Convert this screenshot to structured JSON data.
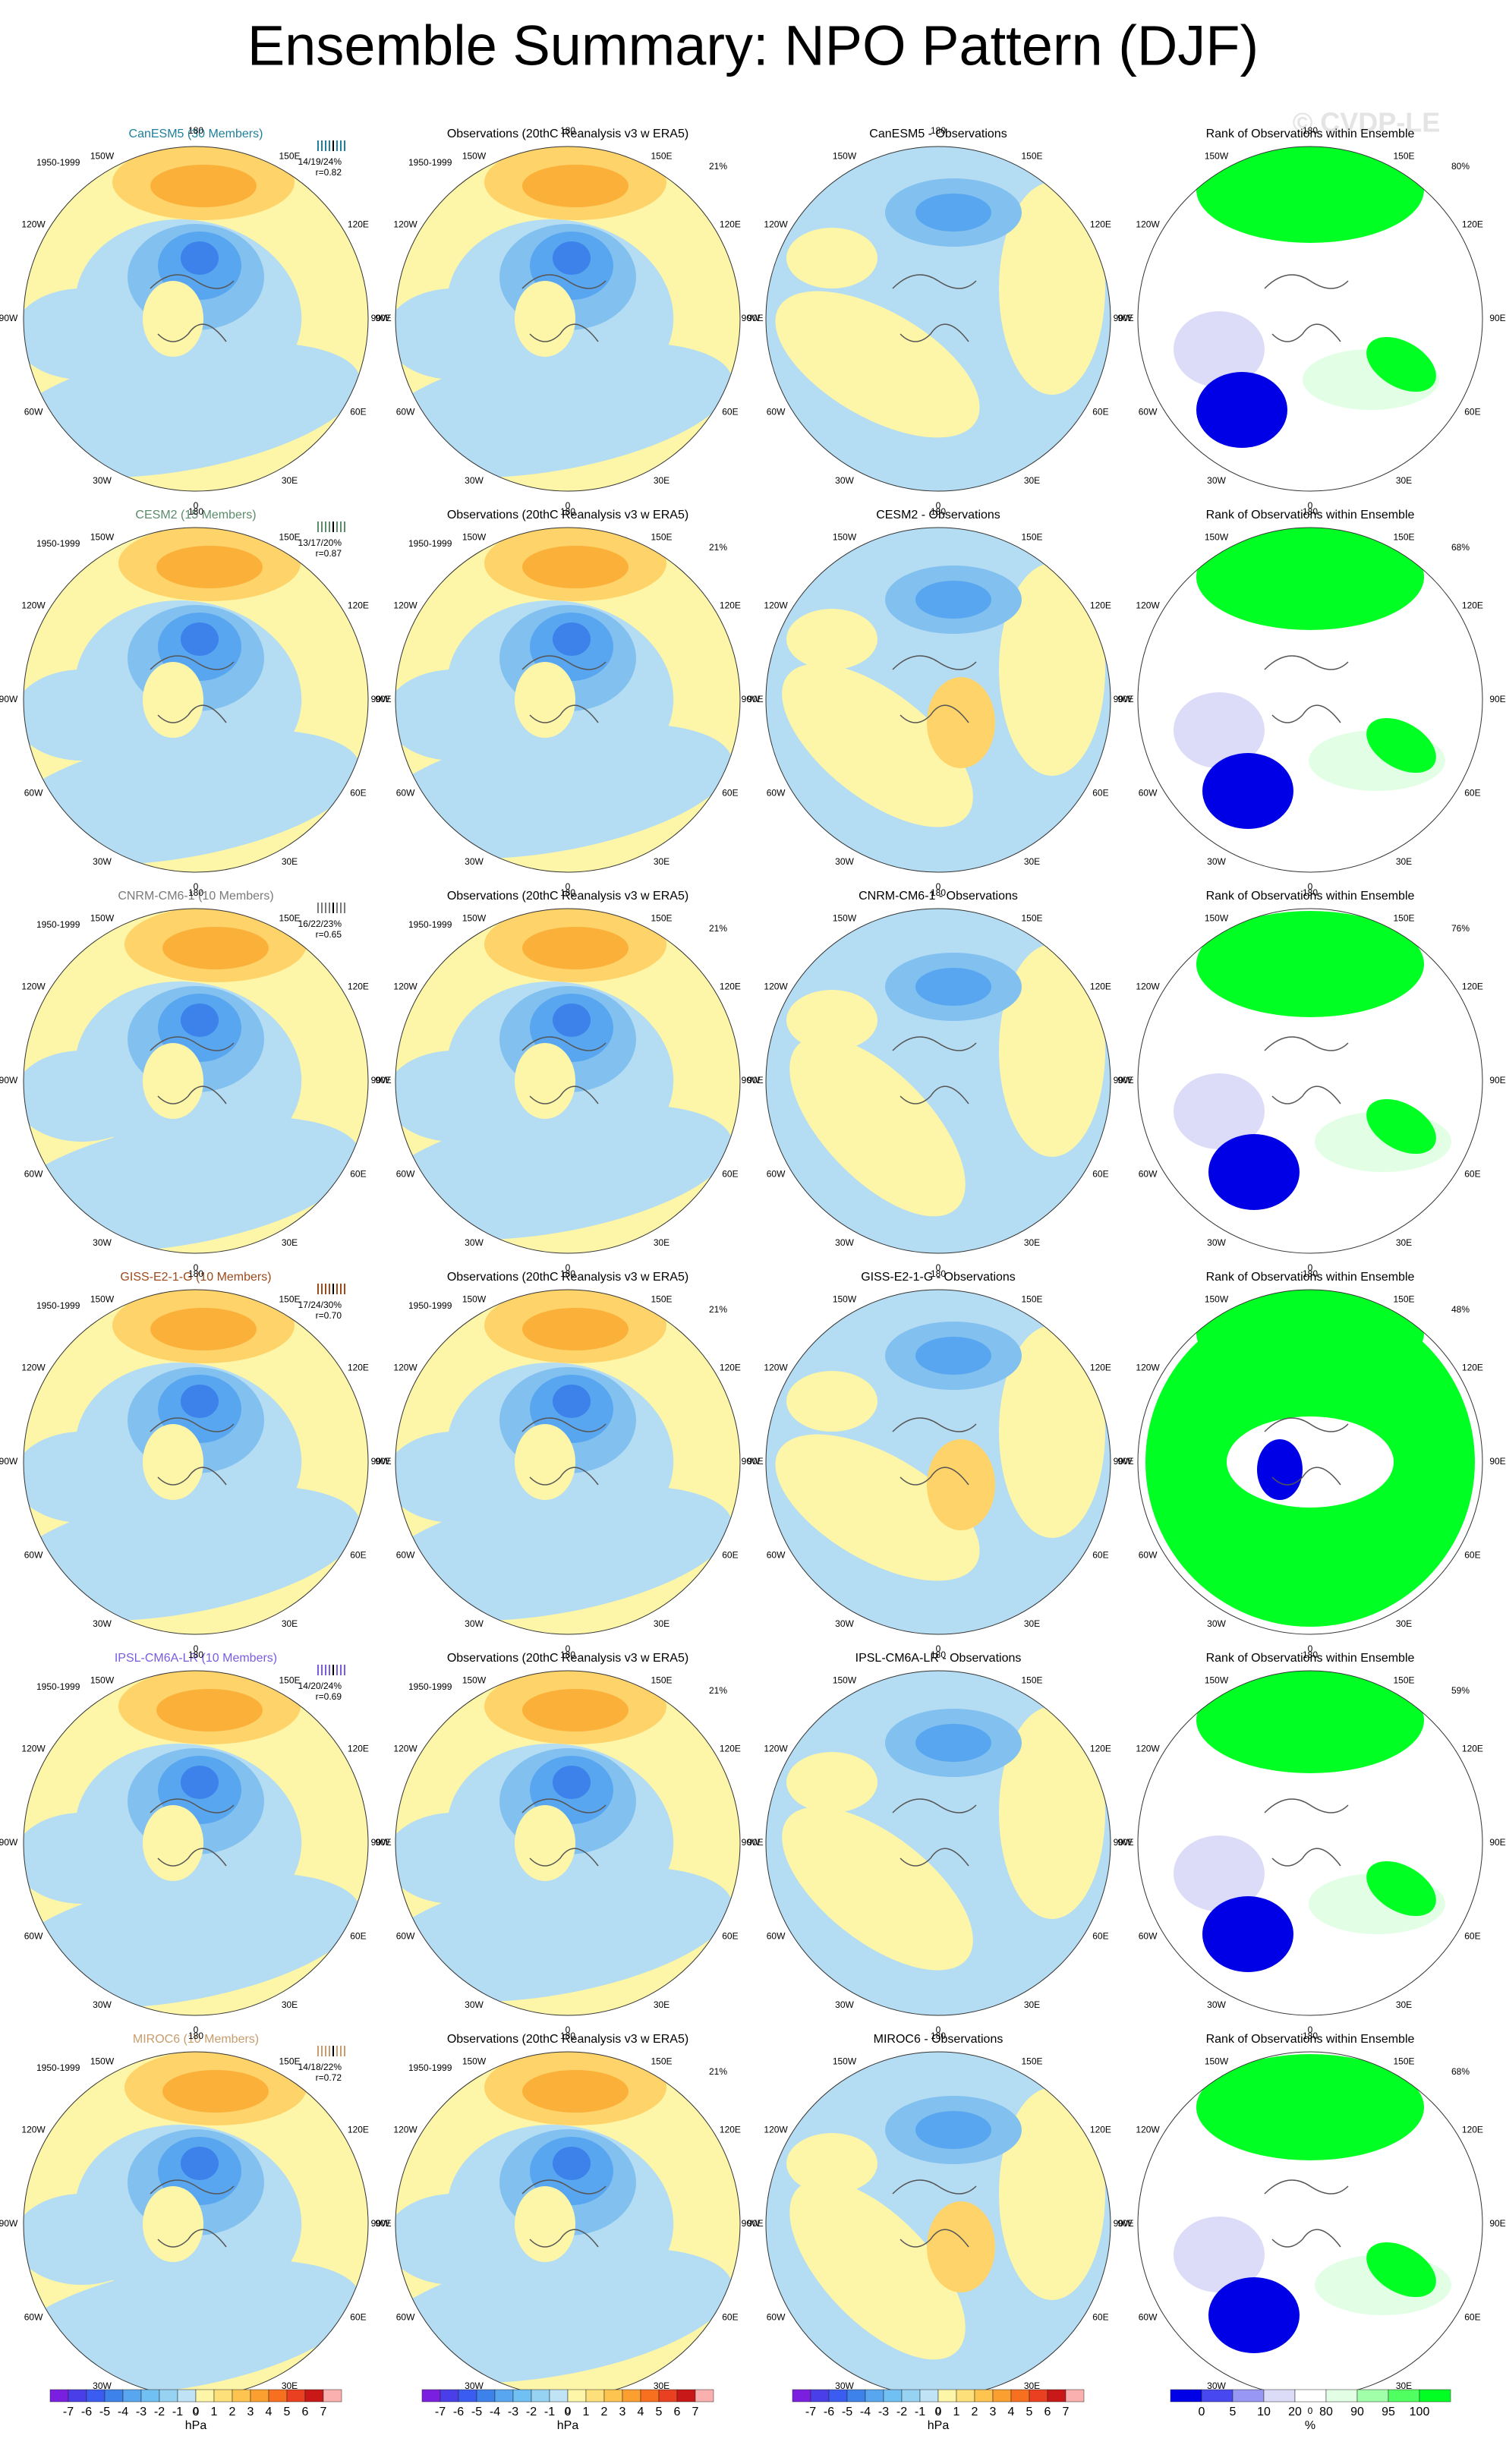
{
  "title": "Ensemble Summary: NPO Pattern (DJF)",
  "watermark": "© CVDP-LE",
  "period": "1950-1999",
  "obs_title": "Observations (20thC Reanalysis v3 w ERA5)",
  "obs_pct": "21%",
  "rank_title": "Rank of Observations within Ensemble",
  "lon_labels": [
    "180",
    "150E",
    "120E",
    "90E",
    "60E",
    "30E",
    "0",
    "30W",
    "60W",
    "90W",
    "120W",
    "150W"
  ],
  "rows": [
    {
      "model": "CanESM5 (30 Members)",
      "stats": "14/19/24%",
      "r": "r=0.82",
      "diff_title": "CanESM5 - Observations",
      "rank_pct": "80%"
    },
    {
      "model": "CESM2 (15 Members)",
      "stats": "13/17/20%",
      "r": "r=0.87",
      "diff_title": "CESM2 - Observations",
      "rank_pct": "68%"
    },
    {
      "model": "CNRM-CM6-1 (10 Members)",
      "stats": "16/22/23%",
      "r": "r=0.65",
      "diff_title": "CNRM-CM6-1 - Observations",
      "rank_pct": "76%"
    },
    {
      "model": "GISS-E2-1-G (10 Members)",
      "stats": "17/24/30%",
      "r": "r=0.70",
      "diff_title": "GISS-E2-1-G - Observations",
      "rank_pct": "48%"
    },
    {
      "model": "IPSL-CM6A-LR (10 Members)",
      "stats": "14/20/24%",
      "r": "r=0.69",
      "diff_title": "IPSL-CM6A-LR - Observations",
      "rank_pct": "59%"
    },
    {
      "model": "MIROC6 (10 Members)",
      "stats": "14/18/22%",
      "r": "r=0.72",
      "diff_title": "MIROC6 - Observations",
      "rank_pct": "68%"
    }
  ],
  "colorbar": {
    "ticks": [
      "-7",
      "-6",
      "-5",
      "-4",
      "-3",
      "-2",
      "-1",
      "0",
      "1",
      "2",
      "3",
      "4",
      "5",
      "6",
      "7"
    ],
    "unit": "hPa"
  },
  "rank_colorbar": {
    "ticks": [
      "0",
      "5",
      "10",
      "20",
      "80",
      "90",
      "95",
      "100"
    ],
    "unit": "%"
  }
}
